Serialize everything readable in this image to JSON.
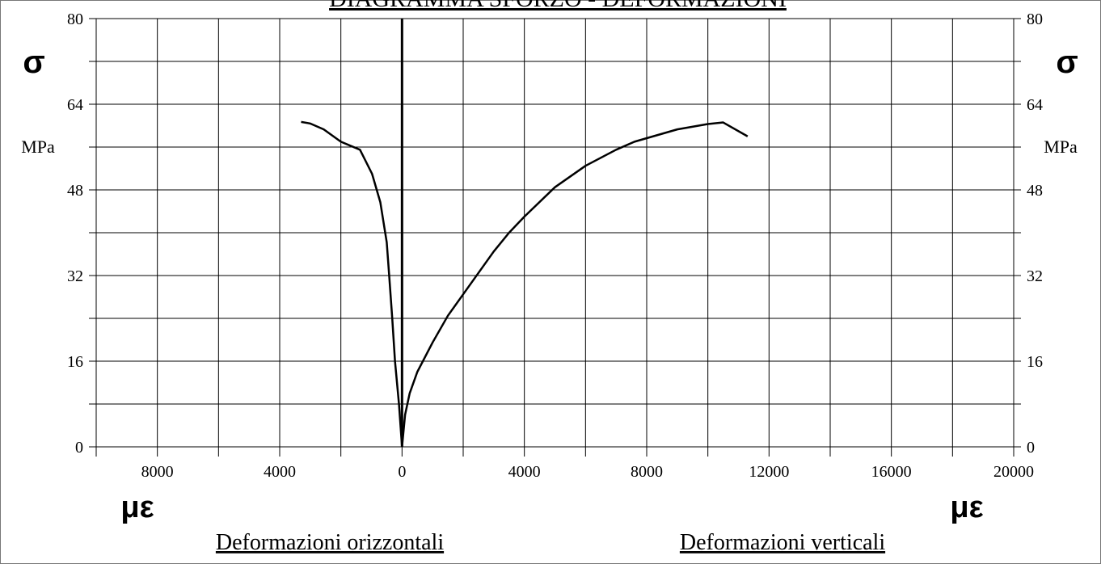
{
  "chart_data": {
    "type": "line",
    "title": "DIAGRAMMA SFORZO - DEFORMAZIONI",
    "x_label": "με",
    "y_label": "σ",
    "y_unit": "MPa",
    "xlim": [
      -10000,
      20000
    ],
    "xticks": [
      {
        "value": -8000,
        "label": "8000"
      },
      {
        "value": -4000,
        "label": "4000"
      },
      0,
      4000,
      8000,
      12000,
      16000,
      20000
    ],
    "x_minor_ticks": [
      -10000,
      -6000,
      -2000,
      2000,
      6000,
      10000,
      14000,
      18000
    ],
    "ylim": [
      0,
      80
    ],
    "yticks": [
      0,
      16,
      32,
      48,
      64,
      80
    ],
    "y_minor_ticks": [
      8,
      24,
      40,
      56,
      72
    ],
    "grid": true,
    "series": [
      {
        "name": "Deformazioni orizzontali",
        "color": "#000000",
        "x": [
          0,
          -100,
          -230,
          -320,
          -420,
          -500,
          -710,
          -980,
          -1375,
          -2000,
          -2560,
          -3000,
          -3300
        ],
        "values": [
          0,
          8,
          16,
          24,
          32,
          38.2,
          45.7,
          51,
          55.5,
          57,
          59.3,
          60.4,
          60.7
        ]
      },
      {
        "name": "Deformazioni verticali",
        "color": "#000000",
        "x": [
          0,
          100,
          250,
          500,
          1000,
          1500,
          2000,
          2500,
          3000,
          3500,
          4000,
          5000,
          6000,
          7000,
          7600,
          9000,
          10000,
          10500,
          11300
        ],
        "values": [
          0,
          6,
          10,
          14,
          19.5,
          24.5,
          28.5,
          32.5,
          36.5,
          40,
          43,
          48.5,
          52.5,
          55.5,
          57,
          59.3,
          60.3,
          60.6,
          58
        ]
      }
    ]
  }
}
